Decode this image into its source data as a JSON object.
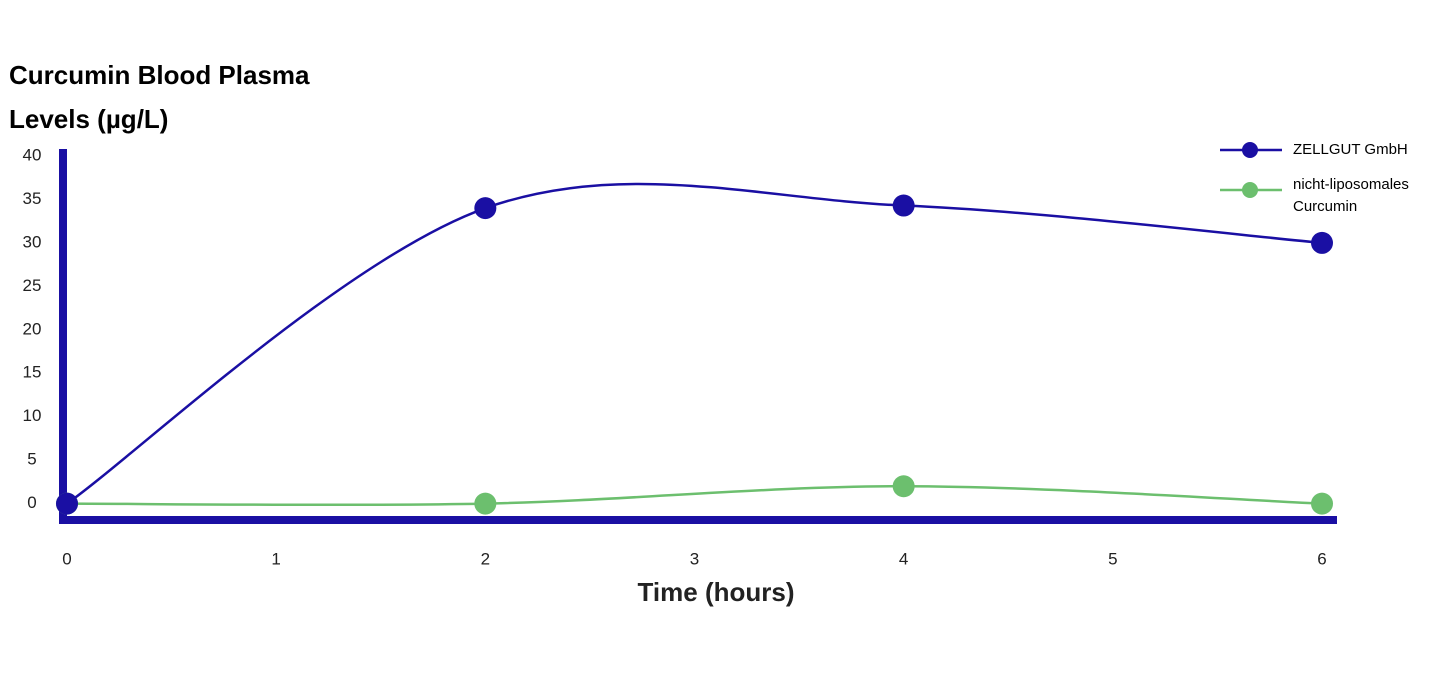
{
  "chart_data": {
    "type": "line",
    "title": "Curcumin Blood Plasma Levels (µg/L)",
    "x_label": "Time (hours)",
    "x": [
      0,
      2,
      4,
      6
    ],
    "series": [
      {
        "name": "ZELLGUT GmbH",
        "color": "#1a0fa3",
        "values": [
          0,
          34,
          34.3,
          30
        ]
      },
      {
        "name": "nicht-liposomales Curcumin",
        "color": "#6cbf6e",
        "values": [
          0,
          0,
          2,
          0
        ]
      }
    ],
    "xlim": [
      0,
      6
    ],
    "xticks": [
      0,
      1,
      2,
      3,
      4,
      5,
      6
    ],
    "ylim": [
      -2,
      40
    ],
    "yticks": [
      0,
      5,
      10,
      15,
      20,
      25,
      30,
      35,
      40
    ],
    "smooth": true,
    "axis_color": "#1a0fa3",
    "legend": "top-right"
  }
}
